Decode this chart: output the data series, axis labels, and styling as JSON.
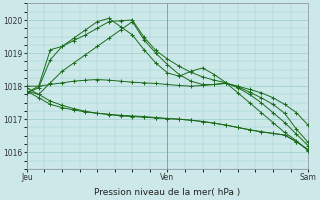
{
  "xlabel": "Pression niveau de la mer( hPa )",
  "background_color": "#cce8e8",
  "grid_color": "#99cccc",
  "line_color": "#1a6b1a",
  "ylim": [
    1015.5,
    1020.5
  ],
  "yticks": [
    1016,
    1017,
    1018,
    1019,
    1020
  ],
  "xtick_labels": [
    "Jeu",
    "Ven",
    "Sam"
  ],
  "xtick_positions": [
    0.0,
    0.5,
    1.0
  ],
  "series": [
    [
      1017.8,
      1017.95,
      1018.8,
      1019.2,
      1019.45,
      1019.7,
      1019.95,
      1020.05,
      1019.8,
      1019.55,
      1019.1,
      1018.7,
      1018.4,
      1018.3,
      1018.45,
      1018.55,
      1018.35,
      1018.1,
      1017.8,
      1017.5,
      1017.2,
      1016.9,
      1016.6,
      1016.35,
      1016.05
    ],
    [
      1017.85,
      1017.75,
      1018.1,
      1018.45,
      1018.7,
      1018.95,
      1019.2,
      1019.45,
      1019.7,
      1019.95,
      1019.4,
      1019.0,
      1018.65,
      1018.35,
      1018.15,
      1018.05,
      1018.05,
      1018.1,
      1017.95,
      1017.75,
      1017.5,
      1017.2,
      1016.9,
      1016.55,
      1016.2
    ],
    [
      1017.85,
      1017.65,
      1017.45,
      1017.35,
      1017.28,
      1017.22,
      1017.18,
      1017.15,
      1017.12,
      1017.1,
      1017.08,
      1017.05,
      1017.02,
      1017.0,
      1016.97,
      1016.93,
      1016.88,
      1016.82,
      1016.75,
      1016.68,
      1016.62,
      1016.57,
      1016.52,
      1016.32,
      1016.08
    ],
    [
      1017.95,
      1017.75,
      1017.55,
      1017.42,
      1017.32,
      1017.24,
      1017.18,
      1017.14,
      1017.1,
      1017.08,
      1017.06,
      1017.04,
      1017.02,
      1017.0,
      1016.97,
      1016.93,
      1016.88,
      1016.82,
      1016.75,
      1016.68,
      1016.62,
      1016.57,
      1016.52,
      1016.32,
      1016.08
    ],
    [
      1018.0,
      1018.0,
      1018.05,
      1018.1,
      1018.15,
      1018.18,
      1018.2,
      1018.18,
      1018.15,
      1018.12,
      1018.1,
      1018.08,
      1018.05,
      1018.02,
      1018.0,
      1018.02,
      1018.05,
      1018.08,
      1018.0,
      1017.9,
      1017.8,
      1017.65,
      1017.45,
      1017.2,
      1016.82
    ],
    [
      1017.8,
      1018.0,
      1019.1,
      1019.2,
      1019.38,
      1019.55,
      1019.75,
      1019.95,
      1019.98,
      1020.0,
      1019.48,
      1019.08,
      1018.82,
      1018.6,
      1018.42,
      1018.28,
      1018.18,
      1018.1,
      1017.98,
      1017.82,
      1017.65,
      1017.45,
      1017.18,
      1016.7,
      1016.3
    ]
  ]
}
